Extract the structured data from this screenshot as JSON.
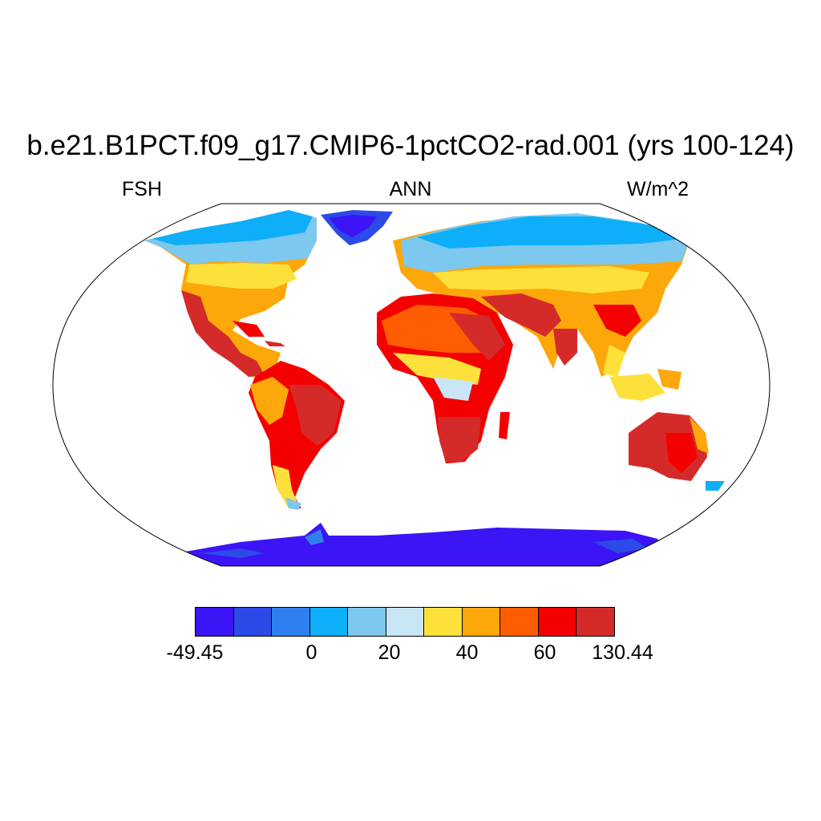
{
  "title": "b.e21.B1PCT.f09_g17.CMIP6-1pctCO2-rad.001 (yrs 100-124)",
  "left_label": "FSH",
  "center_label": "ANN",
  "right_label": "W/m^2",
  "colorbar": {
    "colors": [
      "#3c14f5",
      "#2b4ae8",
      "#2f7ff0",
      "#0eaef8",
      "#7cc8ef",
      "#c9e6f7",
      "#fde13a",
      "#fda70a",
      "#fd5d00",
      "#f40000",
      "#d52a2a"
    ],
    "labels": [
      {
        "text": "-49.45",
        "slot": 0
      },
      {
        "text": "0",
        "slot": 3
      },
      {
        "text": "20",
        "slot": 5
      },
      {
        "text": "40",
        "slot": 7
      },
      {
        "text": "60",
        "slot": 9
      },
      {
        "text": "130.44",
        "slot": 11
      }
    ]
  }
}
